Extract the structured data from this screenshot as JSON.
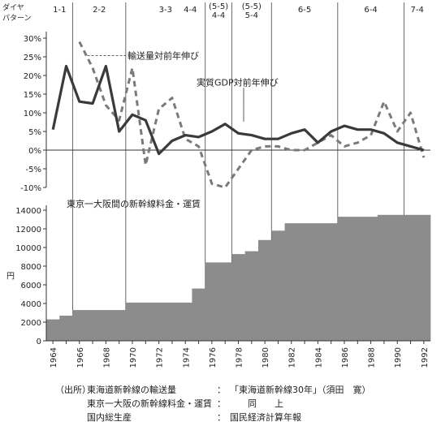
{
  "header": {
    "label_line1": "ダイヤ",
    "label_line2": "パターン",
    "periods": [
      {
        "start": 1963.5,
        "end": 1965.5,
        "label": "1-1"
      },
      {
        "start": 1965.5,
        "end": 1969.5,
        "label": "2-2"
      },
      {
        "start": 1969.5,
        "end": 1975.5,
        "label": "3-3"
      },
      {
        "start": 1975.5,
        "end": 1977.5,
        "label": "(5-5)",
        "label2": "4-4"
      },
      {
        "start": 1977.5,
        "end": 1980.5,
        "label": "(5-5)",
        "label2": "5-4"
      },
      {
        "start": 1980.5,
        "end": 1985.5,
        "label": "6-5"
      },
      {
        "start": 1985.5,
        "end": 1990.5,
        "label": "6-4"
      },
      {
        "start": 1990.5,
        "end": 1992.5,
        "label": "7-4"
      }
    ],
    "extra_top_labels": [
      {
        "year": 1974,
        "label": "4-4"
      }
    ]
  },
  "annotations": {
    "transport": "輸送量対前年伸び",
    "gdp": "実質GDP対前年伸び",
    "fare": "東京一大阪間の新幹線料金・運賃"
  },
  "chart_data": [
    {
      "type": "line",
      "x": [
        1964,
        1965,
        1966,
        1967,
        1968,
        1969,
        1970,
        1971,
        1972,
        1973,
        1974,
        1975,
        1976,
        1977,
        1978,
        1979,
        1980,
        1981,
        1982,
        1983,
        1984,
        1985,
        1986,
        1987,
        1988,
        1989,
        1990,
        1991,
        1992
      ],
      "series": [
        {
          "name": "輸送量対前年伸び",
          "style": "dashed",
          "values": [
            null,
            null,
            29,
            22,
            12,
            8,
            22,
            -4,
            11,
            14,
            3,
            1,
            -9,
            -10,
            -5,
            0,
            1,
            1,
            0,
            0,
            2,
            4,
            1,
            2,
            4,
            13,
            5,
            10,
            -2
          ]
        },
        {
          "name": "実質GDP対前年伸び",
          "style": "solid",
          "values": [
            5.5,
            22.5,
            13,
            12.5,
            22.5,
            5,
            9.5,
            8,
            -1,
            2.5,
            4,
            3.5,
            5,
            7,
            4.5,
            4,
            3,
            3,
            4.5,
            5.5,
            2,
            5,
            6.5,
            5.5,
            5.5,
            4.5,
            2,
            1,
            0
          ]
        }
      ],
      "ylim": [
        -10,
        30
      ],
      "yticks": [
        -10,
        -5,
        0,
        5,
        10,
        15,
        20,
        25,
        30
      ],
      "ytick_labels": [
        "-10%",
        "-5%",
        "0%",
        "5%",
        "10%",
        "15%",
        "20%",
        "25%",
        "30%"
      ]
    },
    {
      "type": "area",
      "step": true,
      "x": [
        1964,
        1965,
        1966,
        1967,
        1968,
        1969,
        1970,
        1971,
        1972,
        1973,
        1974,
        1975,
        1976,
        1977,
        1978,
        1979,
        1980,
        1981,
        1982,
        1983,
        1984,
        1985,
        1986,
        1987,
        1988,
        1989,
        1990,
        1991,
        1992
      ],
      "values": [
        2300,
        2700,
        3300,
        3300,
        3300,
        3300,
        4100,
        4100,
        4100,
        4100,
        4100,
        5600,
        8400,
        8400,
        9300,
        9600,
        10800,
        11800,
        12600,
        12600,
        12600,
        12600,
        13300,
        13300,
        13300,
        13500,
        13500,
        13500,
        13500
      ],
      "ylim": [
        0,
        14000
      ],
      "yticks": [
        0,
        2000,
        4000,
        6000,
        8000,
        10000,
        12000,
        14000
      ],
      "ytick_labels": [
        "0",
        "2000",
        "4000",
        "6000",
        "8000",
        "10000",
        "12000",
        "14000"
      ],
      "ylabel": "円",
      "xtick_labels": [
        "1964",
        "1966",
        "1968",
        "1970",
        "1972",
        "1974",
        "1976",
        "1978",
        "1980",
        "1982",
        "1984",
        "1986",
        "1988",
        "1990",
        "1992"
      ]
    }
  ],
  "source": {
    "lead": "（出所）",
    "rows": [
      {
        "name": "東海道新幹線の輸送量",
        "colon": "：",
        "ref": "「東海道新幹線30年」（須田　寛）"
      },
      {
        "name": "東京一大阪の新幹線料金・運賃",
        "colon": "：",
        "ref": "　　同　　上"
      },
      {
        "name": "国内総生産",
        "colon": "：",
        "ref": "国民経済計算年報"
      }
    ]
  }
}
